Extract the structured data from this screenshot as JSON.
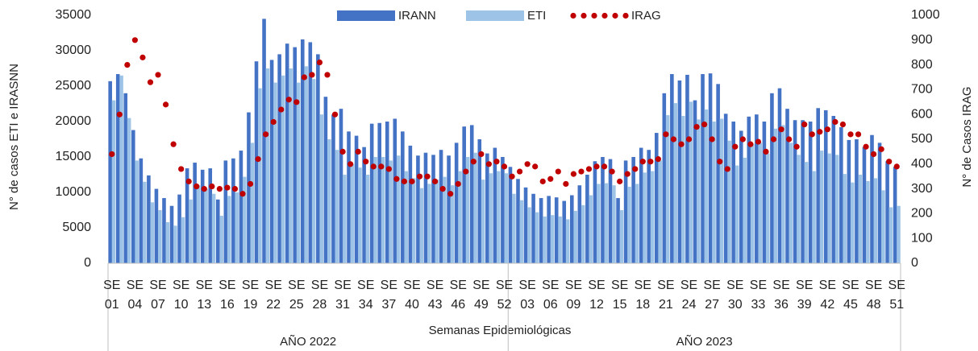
{
  "chart_data": {
    "type": "bar-line",
    "x_label": "Semanas Epidemiológicas",
    "y_label": "N° de casos ETI e IRASNN",
    "y2_label": "N° de Casos IRAG",
    "groups": [
      "AÑO 2022",
      "AÑO 2023"
    ],
    "categories": [
      "SE 01",
      null,
      null,
      "SE 04",
      null,
      null,
      "SE 07",
      null,
      null,
      "SE 10",
      null,
      null,
      "SE 13",
      null,
      null,
      "SE 16",
      null,
      null,
      "SE 19",
      null,
      null,
      "SE 22",
      null,
      null,
      "SE 25",
      null,
      null,
      "SE 28",
      null,
      null,
      "SE 31",
      null,
      null,
      "SE 34",
      null,
      null,
      "SE 37",
      null,
      null,
      "SE 40",
      null,
      null,
      "SE 43",
      null,
      null,
      "SE 46",
      null,
      null,
      "SE 49",
      null,
      null,
      "SE 52",
      null,
      null,
      "SE 03",
      null,
      null,
      "SE 06",
      null,
      null,
      "SE 09",
      null,
      null,
      "SE 12",
      null,
      null,
      "SE 15",
      null,
      null,
      "SE 18",
      null,
      null,
      "SE 21",
      null,
      null,
      "SE 24",
      null,
      null,
      "SE 27",
      null,
      null,
      "SE 30",
      null,
      null,
      "SE 33",
      null,
      null,
      "SE 36",
      null,
      null,
      "SE 39",
      null,
      null,
      "SE 42",
      null,
      null,
      "SE 45",
      null,
      null,
      "SE 48",
      null,
      null,
      "SE 51"
    ],
    "series": [
      {
        "name": "IRANN",
        "color": "#4472c4",
        "kind": "bar",
        "values": [
          25700,
          26700,
          24000,
          18800,
          14800,
          12400,
          10500,
          9200,
          8100,
          9700,
          13400,
          14200,
          13200,
          13400,
          9000,
          14500,
          14800,
          15900,
          21300,
          28500,
          34500,
          28700,
          29500,
          31000,
          30500,
          31600,
          31200,
          29500,
          23500,
          21000,
          21800,
          18600,
          18000,
          16400,
          19700,
          19800,
          20000,
          20400,
          18600,
          16600,
          15200,
          15600,
          15300,
          16000,
          15200,
          17000,
          19300,
          19500,
          17500,
          15500,
          16300,
          15000,
          13600,
          11900,
          10700,
          9800,
          9200,
          9500,
          9300,
          8800,
          9600,
          11000,
          12500,
          14400,
          15000,
          14700,
          9200,
          14500,
          15000,
          16300,
          16000,
          18400,
          24000,
          26700,
          25800,
          26600,
          23000,
          26700,
          26800,
          25300,
          21100,
          20000,
          18700,
          20700,
          21000,
          20000,
          24000,
          24700,
          21800,
          20200,
          20200,
          20000,
          21900,
          21600,
          20800,
          19200,
          17400,
          17500,
          16400,
          18100,
          17000,
          14400,
          13600
        ]
      },
      {
        "name": "ETI",
        "color": "#9dc3e6",
        "kind": "bar",
        "values": [
          23000,
          26500,
          20500,
          14500,
          11500,
          8600,
          7500,
          5800,
          5300,
          6500,
          9000,
          11000,
          10500,
          9800,
          6700,
          9500,
          10000,
          12200,
          17000,
          24700,
          27500,
          25500,
          26500,
          27500,
          25500,
          27800,
          26000,
          21000,
          17500,
          16000,
          12500,
          14000,
          13500,
          12500,
          15000,
          15000,
          14500,
          15200,
          13000,
          12000,
          10600,
          11200,
          11800,
          12200,
          11000,
          13000,
          15000,
          15600,
          11800,
          12700,
          13000,
          12700,
          9800,
          8900,
          7900,
          7200,
          6600,
          6800,
          6600,
          6200,
          7400,
          8200,
          9600,
          11200,
          11300,
          11000,
          7500,
          10800,
          11200,
          12800,
          13000,
          14500,
          20900,
          22600,
          20800,
          22800,
          20300,
          21700,
          20000,
          20400,
          17300,
          13800,
          14900,
          16800,
          17000,
          15500,
          19000,
          19500,
          17000,
          15300,
          14300,
          13000,
          15900,
          15500,
          15300,
          12600,
          11400,
          12500,
          11600,
          12000,
          10300,
          7900,
          8100
        ]
      },
      {
        "name": "IRAG",
        "color": "#c00000",
        "kind": "dots",
        "axis": "y2",
        "values": [
          440,
          600,
          800,
          900,
          830,
          730,
          760,
          640,
          480,
          380,
          330,
          310,
          300,
          310,
          300,
          305,
          300,
          280,
          320,
          420,
          520,
          570,
          620,
          660,
          650,
          750,
          760,
          810,
          760,
          600,
          450,
          400,
          450,
          410,
          390,
          390,
          380,
          340,
          330,
          330,
          350,
          350,
          330,
          300,
          280,
          320,
          370,
          410,
          440,
          400,
          410,
          390,
          350,
          370,
          400,
          390,
          330,
          340,
          370,
          320,
          360,
          370,
          380,
          390,
          390,
          370,
          330,
          360,
          380,
          410,
          410,
          420,
          520,
          500,
          480,
          500,
          550,
          560,
          500,
          410,
          380,
          470,
          500,
          480,
          490,
          450,
          500,
          540,
          500,
          470,
          560,
          520,
          530,
          540,
          570,
          560,
          520,
          520,
          470,
          440,
          460,
          410,
          390
        ]
      }
    ],
    "ylim": [
      0,
      35000
    ],
    "yticks": [
      0,
      5000,
      10000,
      15000,
      20000,
      25000,
      30000,
      35000
    ],
    "y2lim": [
      0,
      1000
    ],
    "y2ticks": [
      0,
      100,
      200,
      300,
      400,
      500,
      600,
      700,
      800,
      900,
      1000
    ],
    "grid": false,
    "legend": "top"
  }
}
